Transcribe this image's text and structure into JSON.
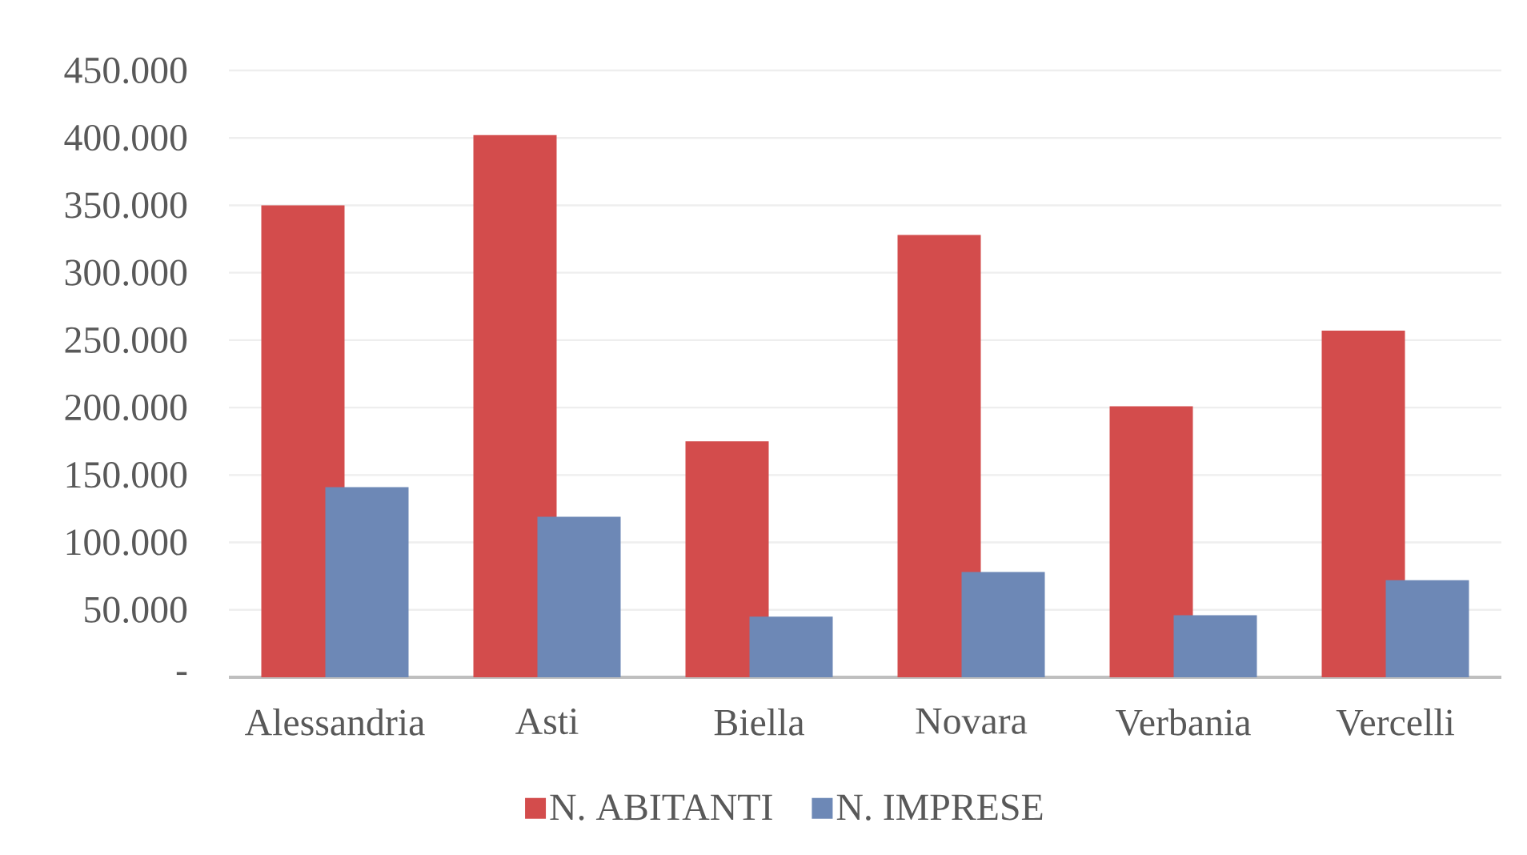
{
  "chart_data": {
    "type": "bar",
    "categories": [
      "Alessandria",
      "Asti",
      "Biella",
      "Novara",
      "Verbania",
      "Vercelli"
    ],
    "series": [
      {
        "name": "N. ABITANTI",
        "color": "#d34c4c",
        "values": [
          350000,
          402000,
          175000,
          328000,
          201000,
          257000
        ]
      },
      {
        "name": "N. IMPRESE",
        "color": "#6d88b6",
        "values": [
          141000,
          119000,
          45000,
          78000,
          46000,
          72000
        ]
      }
    ],
    "ylim": [
      0,
      450000
    ],
    "yticks": [
      {
        "value": 0,
        "label": "-"
      },
      {
        "value": 50000,
        "label": "50.000"
      },
      {
        "value": 100000,
        "label": "100.000"
      },
      {
        "value": 150000,
        "label": "150.000"
      },
      {
        "value": 200000,
        "label": "200.000"
      },
      {
        "value": 250000,
        "label": "250.000"
      },
      {
        "value": 300000,
        "label": "300.000"
      },
      {
        "value": 350000,
        "label": "350.000"
      },
      {
        "value": 400000,
        "label": "400.000"
      },
      {
        "value": 450000,
        "label": "450.000"
      }
    ],
    "grid": "y",
    "legend": "bottom"
  }
}
